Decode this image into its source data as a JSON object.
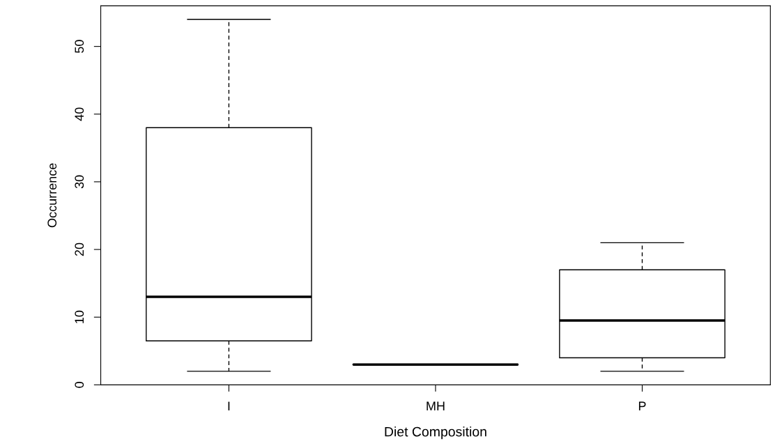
{
  "chart_data": {
    "type": "box",
    "xlabel": "Diet Composition",
    "ylabel": "Occurrence",
    "categories": [
      "I",
      "MH",
      "P"
    ],
    "boxes": [
      {
        "low": 2,
        "q1": 6.5,
        "median": 13,
        "q3": 38,
        "high": 54
      },
      {
        "low": 3,
        "q1": 3,
        "median": 3,
        "q3": 3,
        "high": 3
      },
      {
        "low": 2,
        "q1": 4,
        "median": 9.5,
        "q3": 17,
        "high": 21
      }
    ],
    "ylim": [
      0,
      56
    ],
    "yticks": [
      0,
      10,
      20,
      30,
      40,
      50
    ],
    "grid": false
  }
}
